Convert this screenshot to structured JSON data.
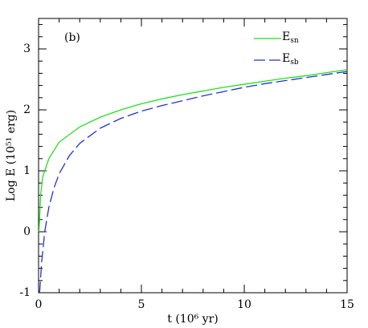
{
  "chart_data": {
    "type": "line",
    "annotation": "(b)",
    "xlabel": "t   (10⁶ yr)",
    "ylabel": "Log E   (10⁵¹ erg)",
    "xlim": [
      0,
      15
    ],
    "ylim": [
      -1,
      3.5
    ],
    "xticks": [
      0,
      5,
      10,
      15
    ],
    "yticks": [
      -1,
      0,
      1,
      2,
      3
    ],
    "xminorticks": [
      1,
      2,
      3,
      4,
      6,
      7,
      8,
      9,
      11,
      12,
      13,
      14
    ],
    "yminorticks": [
      -0.8,
      -0.6,
      -0.4,
      -0.2,
      0.2,
      0.4,
      0.6,
      0.8,
      1.2,
      1.4,
      1.6,
      1.8,
      2.2,
      2.4,
      2.6,
      2.8,
      3.2,
      3.4
    ],
    "series": [
      {
        "name": "Esn",
        "color": "#22dd22",
        "dash": false,
        "x": [
          0.02,
          0.1,
          0.2,
          0.5,
          1,
          2,
          3,
          4,
          5,
          6,
          7,
          8,
          9,
          10,
          11,
          12,
          13,
          14,
          15
        ],
        "values": [
          0,
          0.6,
          0.9,
          1.2,
          1.47,
          1.72,
          1.88,
          2.0,
          2.1,
          2.18,
          2.25,
          2.31,
          2.37,
          2.42,
          2.47,
          2.52,
          2.56,
          2.61,
          2.66
        ]
      },
      {
        "name": "Esb",
        "color": "#2233cc",
        "dash": true,
        "x": [
          0.05,
          0.15,
          0.3,
          0.5,
          0.75,
          1,
          1.5,
          2,
          3,
          4,
          5,
          6,
          7,
          8,
          9,
          10,
          11,
          12,
          13,
          14,
          15
        ],
        "values": [
          -1,
          -0.5,
          0,
          0.4,
          0.72,
          0.95,
          1.25,
          1.45,
          1.7,
          1.86,
          1.98,
          2.07,
          2.15,
          2.23,
          2.3,
          2.37,
          2.43,
          2.48,
          2.53,
          2.58,
          2.63
        ]
      }
    ]
  }
}
